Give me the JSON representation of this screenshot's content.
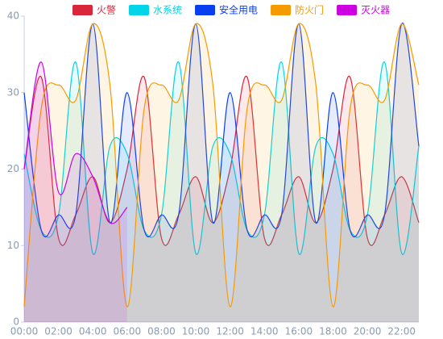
{
  "chart_data": {
    "type": "area",
    "categories": [
      "00:00",
      null,
      "02:00",
      null,
      "04:00",
      null,
      "06:00",
      null,
      "08:00",
      null,
      "10:00",
      null,
      "12:00",
      null,
      "14:00",
      null,
      "16:00",
      null,
      "18:00",
      null,
      "20:00",
      null,
      "22:00",
      null
    ],
    "series": [
      {
        "name": "火警",
        "color": "#d9263a",
        "values": [
          20,
          32,
          11,
          14,
          19,
          13,
          20,
          32,
          11,
          14,
          19,
          13,
          20,
          32,
          11,
          14,
          19,
          13,
          20,
          32,
          11,
          14,
          19,
          13
        ]
      },
      {
        "name": "水系统",
        "color": "#00d4e6",
        "values": [
          22,
          12,
          14,
          34,
          9,
          23,
          22,
          12,
          14,
          34,
          9,
          23,
          22,
          12,
          14,
          34,
          9,
          23,
          22,
          12,
          14,
          34,
          9,
          23
        ]
      },
      {
        "name": "安全用电",
        "color": "#0a3ff0",
        "values": [
          30,
          12,
          14,
          14,
          39,
          13,
          30,
          12,
          14,
          14,
          39,
          13,
          30,
          12,
          14,
          14,
          39,
          13,
          30,
          12,
          14,
          14,
          39,
          23
        ]
      },
      {
        "name": "防火门",
        "color": "#f59b00",
        "values": [
          2,
          28,
          31,
          29,
          39,
          31,
          2,
          28,
          31,
          29,
          39,
          31,
          2,
          28,
          31,
          29,
          39,
          31,
          2,
          28,
          31,
          29,
          39,
          31
        ]
      },
      {
        "name": "灭火器",
        "color": "#cc00e0",
        "values": [
          20,
          34,
          17,
          22,
          19,
          13,
          15,
          null,
          null,
          null,
          null,
          null,
          null,
          null,
          null,
          null,
          null,
          null,
          null,
          null,
          null,
          null,
          null,
          null
        ]
      }
    ],
    "ylim": [
      0,
      40
    ],
    "yticks": [
      0,
      10,
      20,
      30,
      40
    ],
    "legend": "top"
  }
}
